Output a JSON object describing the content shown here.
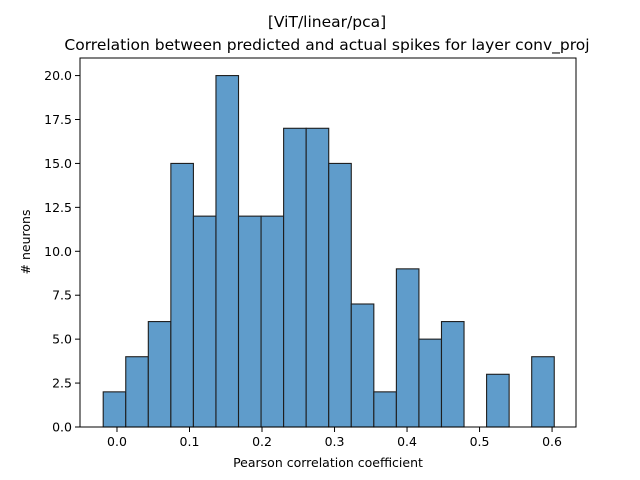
{
  "chart_data": {
    "type": "bar",
    "title_line1": "[ViT/linear/pca]",
    "title_line2": "Correlation between predicted and actual spikes for layer conv_proj",
    "xlabel": "Pearson correlation coefficient",
    "ylabel": "# neurons",
    "xlim": [
      -0.051,
      0.633
    ],
    "ylim": [
      0,
      21
    ],
    "bin_start": -0.019,
    "bin_width": 0.0311,
    "values": [
      2,
      4,
      6,
      15,
      12,
      20,
      12,
      12,
      17,
      17,
      15,
      7,
      2,
      9,
      5,
      6,
      0,
      3,
      0,
      4
    ],
    "xticks": [
      0.0,
      0.1,
      0.2,
      0.3,
      0.4,
      0.5,
      0.6
    ],
    "xtick_labels": [
      "0.0",
      "0.1",
      "0.2",
      "0.3",
      "0.4",
      "0.5",
      "0.6"
    ],
    "yticks": [
      0,
      2.5,
      5,
      7.5,
      10,
      12.5,
      15,
      17.5,
      20
    ],
    "ytick_labels": [
      "0.0",
      "2.5",
      "5.0",
      "7.5",
      "10.0",
      "12.5",
      "15.0",
      "17.5",
      "20.0"
    ],
    "bar_color": "#5f9ccb",
    "edge_color": "#1e1e1e",
    "grid": false,
    "legend": "none"
  }
}
